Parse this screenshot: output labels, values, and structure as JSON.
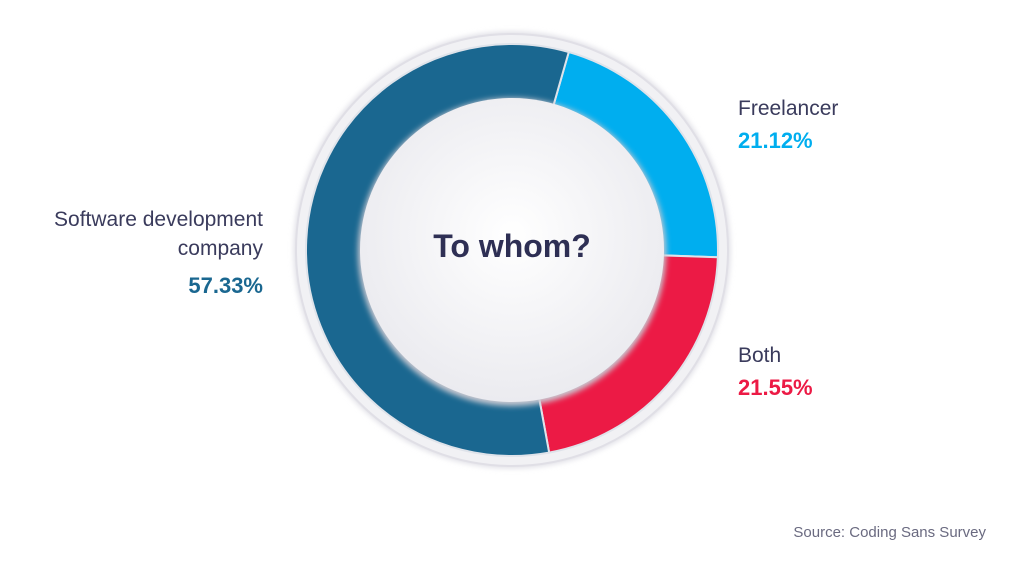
{
  "chart_data": {
    "type": "pie",
    "title": "To whom?",
    "slices": [
      {
        "label": "Freelancer",
        "value": 21.12,
        "display": "21.12%",
        "color": "#00aeef"
      },
      {
        "label": "Both",
        "value": 21.55,
        "display": "21.55%",
        "color": "#ec1a45"
      },
      {
        "label": "Software development company",
        "value": 57.33,
        "display": "57.33%",
        "color": "#1a6790"
      }
    ],
    "style": "donut",
    "start_angle": "clockwise from about 1 o'clock"
  },
  "labels": {
    "software_name": "Software development company",
    "software_value": "57.33%",
    "freelancer_name": "Freelancer",
    "freelancer_value": "21.12%",
    "both_name": "Both",
    "both_value": "21.55%"
  },
  "source": "Source: Coding Sans Survey",
  "colors": {
    "software": "#1a6790",
    "freelancer": "#00aeef",
    "both": "#ec1a45",
    "title": "#2e2f54"
  }
}
